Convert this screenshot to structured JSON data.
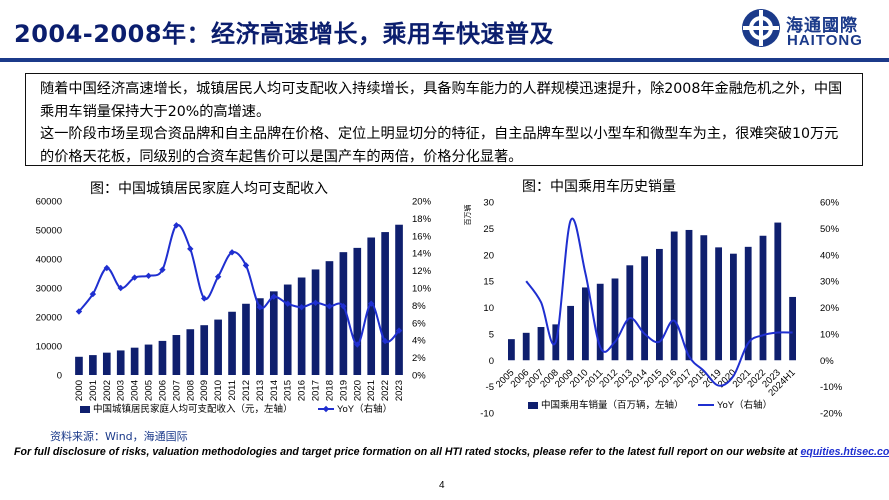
{
  "header": {
    "title": "2004-2008年：经济高速增长，乘用车快速普及",
    "logo_cn": "海通國際",
    "logo_en": "HAITONG"
  },
  "summary": {
    "line1": "随着中国经济高速增长，城镇居民人均可支配收入持续增长，具备购车能力的人群规模迅速提升，除2008年金融危机之外，中国乘用车销量保持大于20%的高增速。",
    "line2": "这一阶段市场呈现合资品牌和自主品牌在价格、定位上明显切分的特征，自主品牌车型以小型车和微型车为主，很难突破10万元的价格天花板，同级别的合资车起售价可以是国产车的两倍，价格分化显著。"
  },
  "chart_data": [
    {
      "type": "bar",
      "title": "图：中国城镇居民家庭人均可支配收入",
      "categories": [
        "2000",
        "2001",
        "2002",
        "2003",
        "2004",
        "2005",
        "2006",
        "2007",
        "2008",
        "2009",
        "2010",
        "2011",
        "2012",
        "2013",
        "2014",
        "2015",
        "2016",
        "2017",
        "2018",
        "2019",
        "2020",
        "2021",
        "2022",
        "2023"
      ],
      "series": [
        {
          "name": "中国城镇居民家庭人均可支配收入（元，左轴）",
          "kind": "bar",
          "axis": "left",
          "color": "#0f1f6e",
          "values": [
            6280,
            6860,
            7703,
            8472,
            9422,
            10493,
            11759,
            13786,
            15781,
            17175,
            19109,
            21810,
            24565,
            26467,
            28844,
            31195,
            33616,
            36396,
            39251,
            42359,
            43834,
            47412,
            49283,
            51821
          ]
        },
        {
          "name": "YoY（右轴）",
          "kind": "line",
          "axis": "right",
          "color": "#1f2fd0",
          "values": [
            0.073,
            0.093,
            0.123,
            0.1,
            0.112,
            0.114,
            0.121,
            0.172,
            0.145,
            0.088,
            0.113,
            0.141,
            0.126,
            0.078,
            0.09,
            0.082,
            0.078,
            0.083,
            0.079,
            0.079,
            0.035,
            0.082,
            0.039,
            0.051
          ]
        }
      ],
      "ylim_left": [
        0,
        60000
      ],
      "yticks_left": [
        "0",
        "10000",
        "20000",
        "30000",
        "40000",
        "50000",
        "60000"
      ],
      "ylim_right": [
        0,
        0.2
      ],
      "yticks_right": [
        "0%",
        "2%",
        "4%",
        "6%",
        "8%",
        "10%",
        "12%",
        "14%",
        "16%",
        "18%",
        "20%"
      ],
      "legend": [
        "中国城镇居民家庭人均可支配收入（元，左轴）",
        "YoY（右轴）"
      ],
      "legend_position": "bottom"
    },
    {
      "type": "bar",
      "title": "图：中国乘用车历史销量",
      "ylabel": "百万辆",
      "categories": [
        "2005",
        "2006",
        "2007",
        "2008",
        "2009",
        "2010",
        "2011",
        "2012",
        "2013",
        "2014",
        "2015",
        "2016",
        "2017",
        "2018",
        "2019",
        "2020",
        "2021",
        "2022",
        "2023",
        "2024H1"
      ],
      "series": [
        {
          "name": "中国乘用车销量（百万辆，左轴）",
          "kind": "bar",
          "axis": "left",
          "color": "#0f1f6e",
          "values": [
            4.0,
            5.2,
            6.3,
            6.8,
            10.3,
            13.8,
            14.5,
            15.5,
            18.0,
            19.7,
            21.1,
            24.4,
            24.7,
            23.7,
            21.4,
            20.2,
            21.5,
            23.6,
            26.1,
            12.0
          ]
        },
        {
          "name": "YoY（右轴）",
          "kind": "line",
          "axis": "right",
          "color": "#1f2fd0",
          "values": [
            null,
            0.3,
            0.22,
            0.07,
            0.53,
            0.33,
            0.05,
            0.07,
            0.16,
            0.1,
            0.07,
            0.15,
            0.015,
            -0.04,
            -0.096,
            -0.06,
            0.065,
            0.095,
            0.105,
            0.105
          ]
        }
      ],
      "ylim_left": [
        -10,
        30
      ],
      "yticks_left": [
        "-10",
        "-5",
        "0",
        "5",
        "10",
        "15",
        "20",
        "25",
        "30"
      ],
      "ylim_right": [
        -0.2,
        0.6
      ],
      "yticks_right": [
        "-20%",
        "-10%",
        "0%",
        "10%",
        "20%",
        "30%",
        "40%",
        "50%",
        "60%"
      ],
      "legend": [
        "中国乘用车销量（百万辆，左轴）",
        "YoY（右轴）"
      ],
      "legend_position": "bottom"
    }
  ],
  "source": "资料来源：Wind，海通国际",
  "footer": {
    "disclaimer": "For full disclosure of risks, valuation methodologies and target price formation on all HTI rated stocks, please refer to the latest full report on our website at ",
    "link": "equities.htisec.com",
    "page": "4"
  }
}
